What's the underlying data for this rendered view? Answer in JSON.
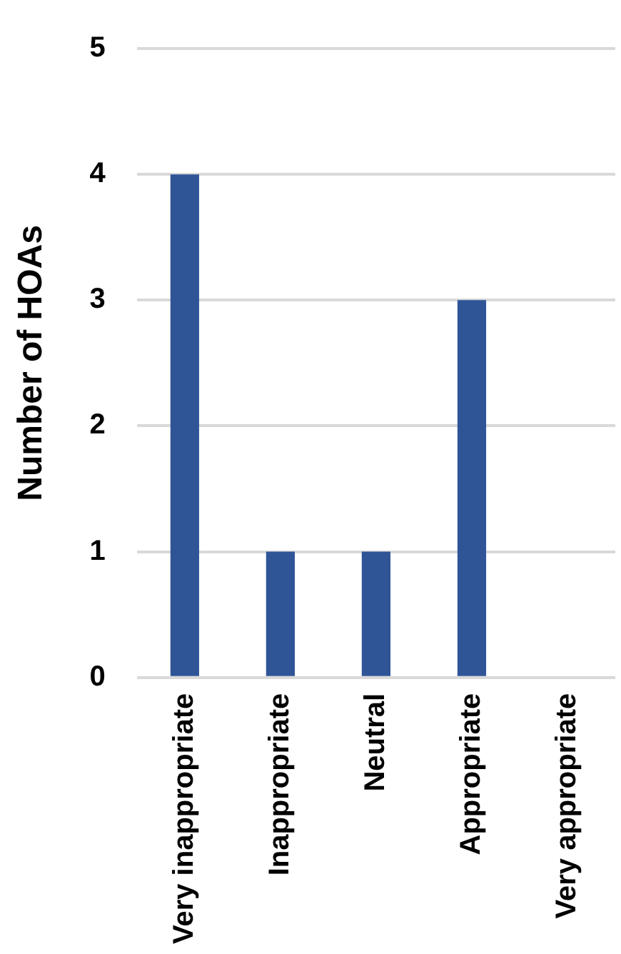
{
  "chart_data": {
    "type": "bar",
    "ylabel": "Number of HOAs",
    "categories": [
      "Very inappropriate",
      "Inappropriate",
      "Neutral",
      "Appropriate",
      "Very appropriate"
    ],
    "values": [
      4,
      1,
      1,
      3,
      0
    ],
    "color": "#2f5597",
    "ylim": [
      0,
      5
    ],
    "yticks": [
      0,
      1,
      2,
      3,
      4,
      5
    ],
    "grid": "y"
  }
}
